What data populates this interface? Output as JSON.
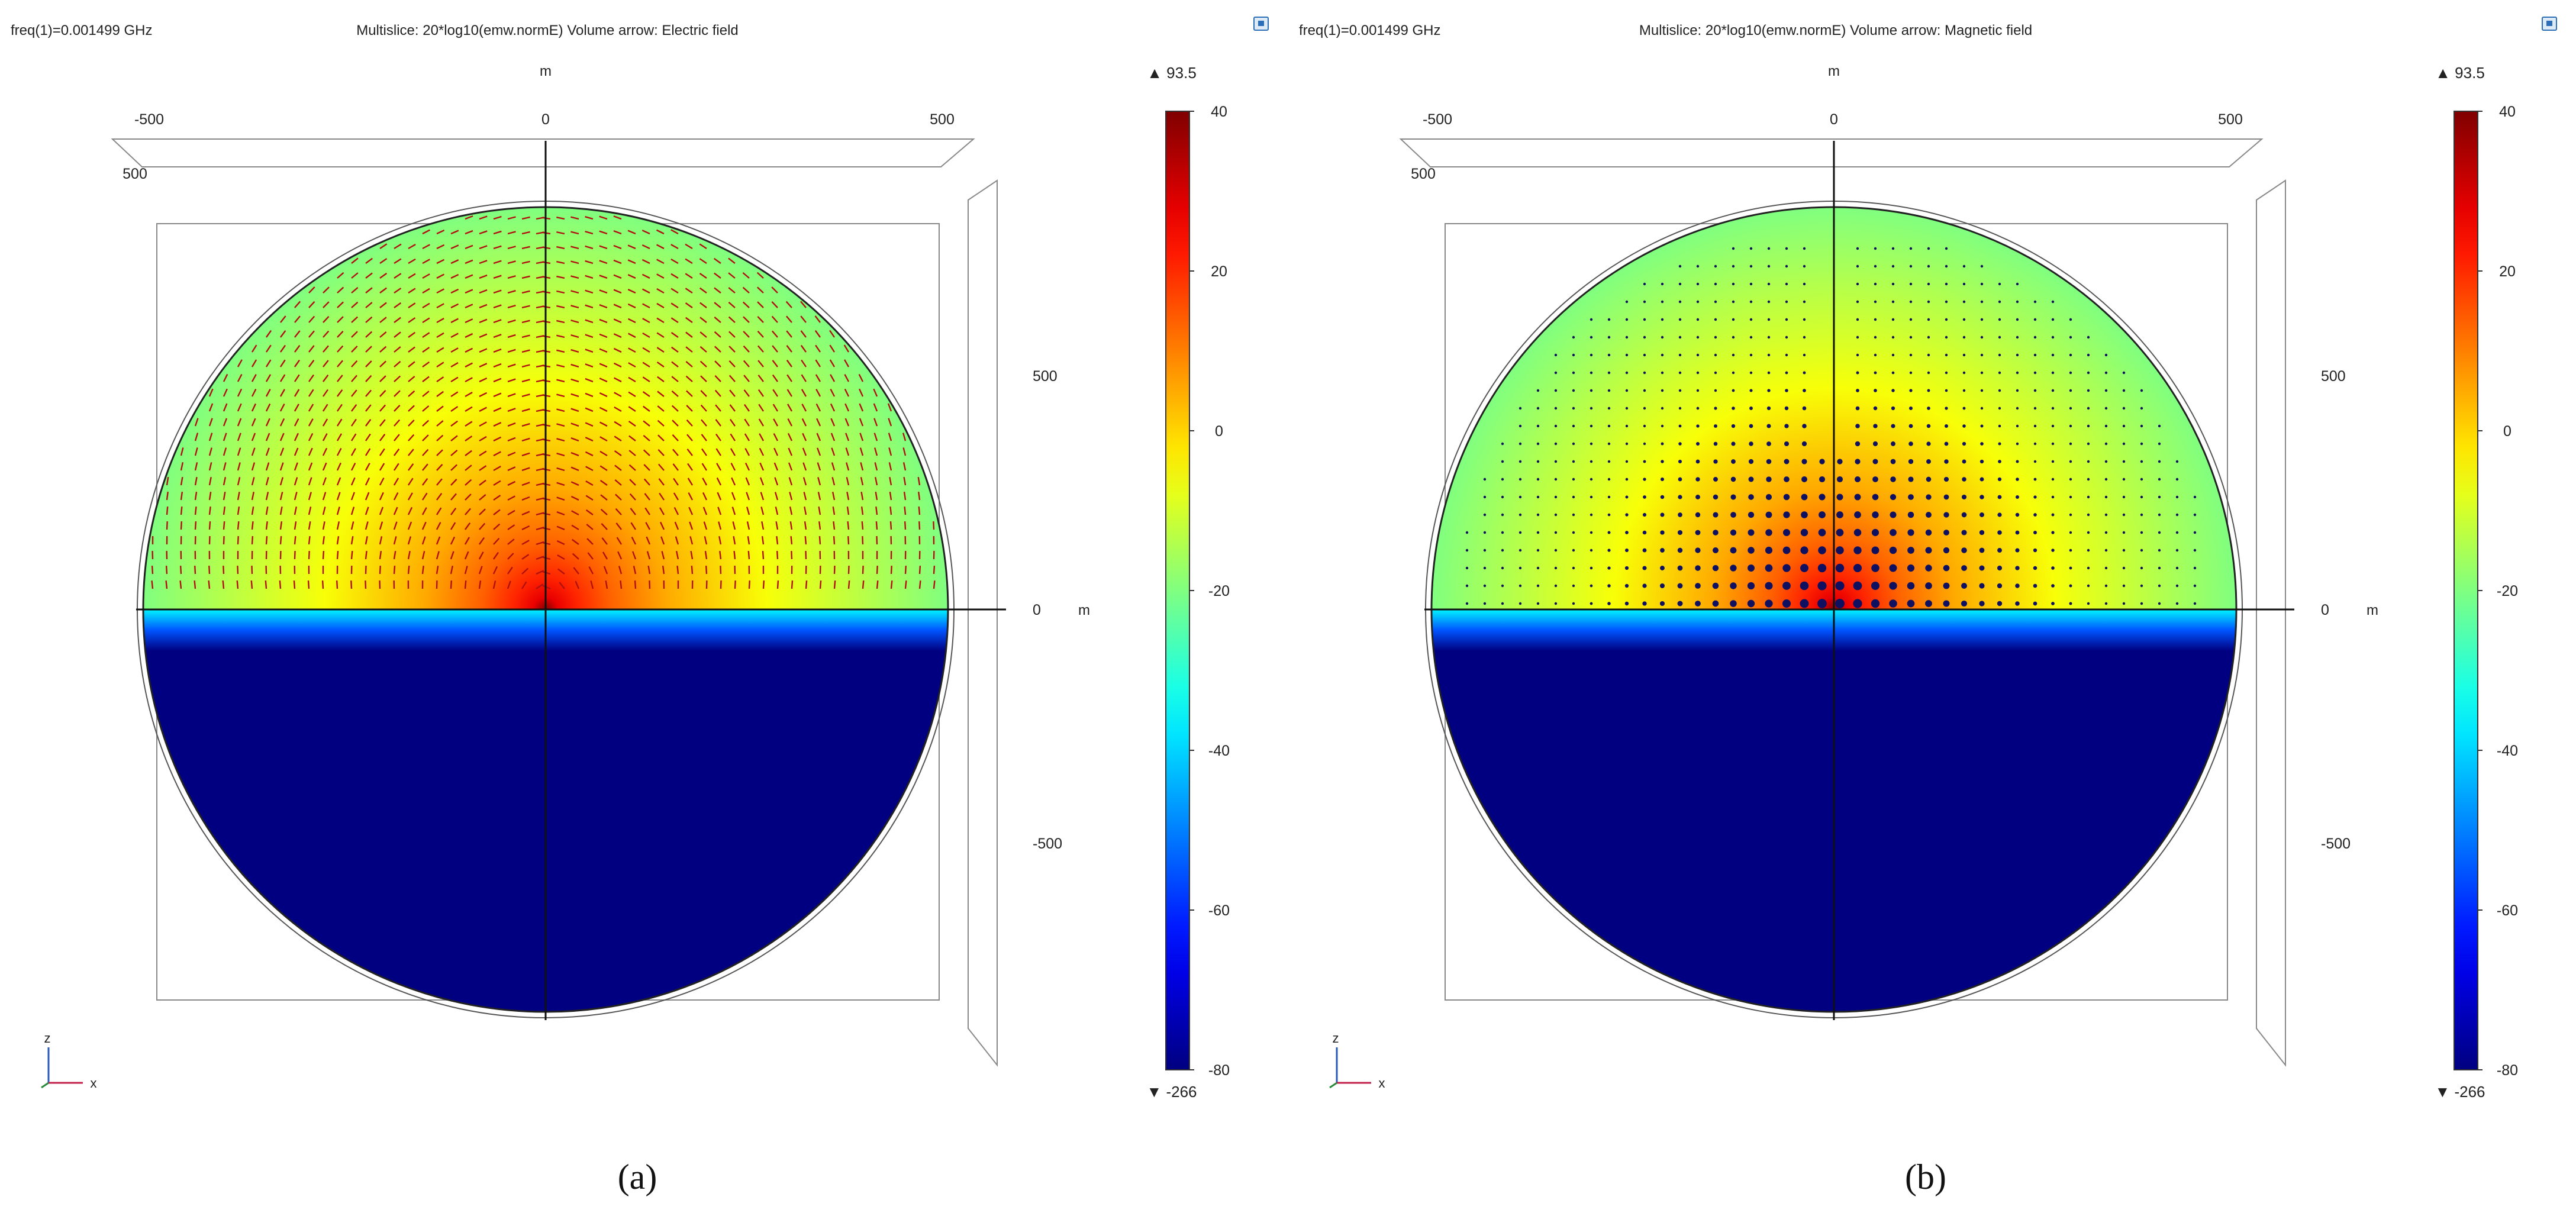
{
  "chart_data": [
    {
      "type": "heatmap",
      "panel_label": "a",
      "header_left": "freq(1)=0.001499 GHz",
      "title": "Multislice: 20*log10(emw.normE) Volume arrow: Electric field",
      "arrow_field": "Electric field",
      "arrow_style": "tangential field lines (red arrows)",
      "axes": {
        "x": {
          "unit": "m",
          "ticks": [
            "-500",
            "0",
            "500"
          ],
          "range": [
            -500,
            500
          ]
        },
        "z": {
          "unit": "m",
          "ticks": [
            "500",
            "0",
            "-500"
          ],
          "range": [
            -500,
            500
          ]
        },
        "depth_tick": "500",
        "orientation_labels": [
          "z",
          "x"
        ]
      },
      "colorbar": {
        "colormap": "jet",
        "ticks": [
          "40",
          "20",
          "0",
          "-20",
          "-40",
          "-60",
          "-80"
        ],
        "range": [
          -80,
          40
        ],
        "max_label": "▲ 93.5",
        "min_label": "▼ -266"
      },
      "field_description": {
        "source_position": [
          0,
          0
        ],
        "air_half_range_dB": [
          -20,
          40
        ],
        "earth_half_value_dB": -80
      }
    },
    {
      "type": "heatmap",
      "panel_label": "b",
      "header_left": "freq(1)=0.001499 GHz",
      "title": "Multislice: 20*log10(emw.normE) Volume arrow: Magnetic field",
      "arrow_field": "Magnetic field",
      "arrow_style": "out-of-plane dots",
      "axes": {
        "x": {
          "unit": "m",
          "ticks": [
            "-500",
            "0",
            "500"
          ],
          "range": [
            -500,
            500
          ]
        },
        "z": {
          "unit": "m",
          "ticks": [
            "500",
            "0",
            "-500"
          ],
          "range": [
            -500,
            500
          ]
        },
        "depth_tick": "500",
        "orientation_labels": [
          "z",
          "x"
        ]
      },
      "colorbar": {
        "colormap": "jet",
        "ticks": [
          "40",
          "20",
          "0",
          "-20",
          "-40",
          "-60",
          "-80"
        ],
        "range": [
          -80,
          40
        ],
        "max_label": "▲ 93.5",
        "min_label": "▼ -266"
      },
      "field_description": {
        "source_position": [
          0,
          0
        ],
        "air_half_range_dB": [
          -20,
          40
        ],
        "earth_half_value_dB": -80
      }
    }
  ],
  "captions": {
    "a": "(a)",
    "b": "(b)"
  }
}
